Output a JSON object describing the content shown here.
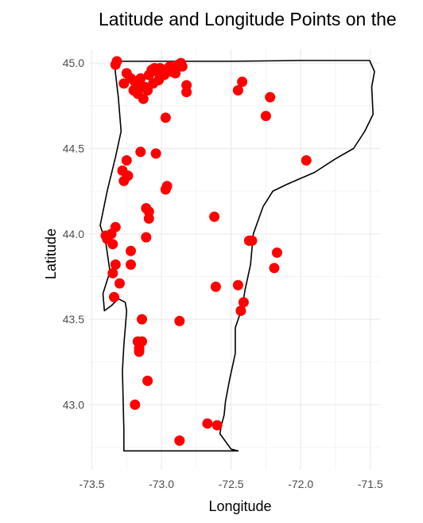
{
  "chart_data": {
    "type": "scatter",
    "title": "Latitude and Longitude Points on the",
    "xlabel": "Longitude",
    "ylabel": "Latitude",
    "xlim": [
      -73.52,
      -71.43
    ],
    "ylim": [
      42.62,
      45.08
    ],
    "xticks": [
      -73.5,
      -73.0,
      -72.5,
      -72.0,
      -71.5
    ],
    "xtick_labels": [
      "-73.5",
      "-73.0",
      "-72.5",
      "-72.0",
      "-71.5"
    ],
    "yticks": [
      43.0,
      43.5,
      44.0,
      44.5,
      45.0
    ],
    "ytick_labels": [
      "43.0",
      "43.5",
      "44.0",
      "44.5",
      "45.0"
    ],
    "grid": true,
    "point_color": "#ff0000",
    "outline_color": "#000000",
    "outline": {
      "x": [
        -73.34,
        -73.23,
        -73.0,
        -72.5,
        -72.0,
        -71.505,
        -71.47,
        -71.49,
        -71.48,
        -71.54,
        -71.62,
        -71.75,
        -71.9,
        -72.1,
        -72.2,
        -72.27,
        -72.34,
        -72.36,
        -72.4,
        -72.42,
        -72.47,
        -72.47,
        -72.51,
        -72.54,
        -72.55,
        -72.57,
        -72.58,
        -72.5,
        -72.45,
        -73.27,
        -73.27,
        -73.28,
        -73.27,
        -73.25,
        -73.26,
        -73.31,
        -73.36,
        -73.41,
        -73.42,
        -73.37,
        -73.4,
        -73.44,
        -73.39,
        -73.33,
        -73.29,
        -73.31,
        -73.34
      ],
      "y": [
        45.01,
        45.01,
        45.01,
        45.01,
        45.015,
        45.015,
        44.95,
        44.86,
        44.7,
        44.6,
        44.5,
        44.44,
        44.36,
        44.29,
        44.25,
        44.16,
        44.0,
        43.82,
        43.67,
        43.57,
        43.45,
        43.3,
        43.15,
        43.02,
        42.94,
        42.88,
        42.83,
        42.74,
        42.73,
        42.73,
        42.85,
        43.2,
        43.35,
        43.55,
        43.6,
        43.62,
        43.58,
        43.55,
        43.65,
        43.78,
        43.95,
        44.05,
        44.25,
        44.45,
        44.6,
        44.8,
        45.01
      ]
    },
    "x": [
      -73.32,
      -73.33,
      -73.27,
      -73.25,
      -73.22,
      -73.19,
      -73.16,
      -73.15,
      -73.12,
      -73.09,
      -73.07,
      -73.05,
      -73.03,
      -73.01,
      -72.99,
      -72.97,
      -72.95,
      -72.93,
      -72.9,
      -72.88,
      -72.86,
      -72.85,
      -73.2,
      -73.17,
      -73.13,
      -73.1,
      -73.06,
      -73.02,
      -72.98,
      -72.94,
      -72.9,
      -72.82,
      -72.82,
      -72.42,
      -72.45,
      -72.22,
      -72.25,
      -72.97,
      -73.15,
      -73.04,
      -73.25,
      -73.28,
      -73.27,
      -73.24,
      -73.11,
      -73.09,
      -72.96,
      -72.97,
      -71.96,
      -73.09,
      -73.36,
      -73.39,
      -73.33,
      -73.4,
      -73.35,
      -73.22,
      -73.11,
      -73.33,
      -73.35,
      -73.3,
      -73.22,
      -73.34,
      -72.35,
      -72.37,
      -72.17,
      -72.19,
      -72.62,
      -72.61,
      -72.45,
      -72.41,
      -72.43,
      -73.14,
      -72.87,
      -73.17,
      -73.16,
      -73.14,
      -73.16,
      -73.1,
      -73.19,
      -72.67,
      -72.6,
      -72.87
    ],
    "y": [
      45.01,
      44.99,
      44.88,
      44.94,
      44.91,
      44.89,
      44.87,
      44.91,
      44.86,
      44.93,
      44.96,
      44.97,
      44.95,
      44.97,
      44.96,
      44.95,
      44.97,
      44.95,
      44.96,
      44.99,
      45.0,
      44.98,
      44.84,
      44.82,
      44.79,
      44.84,
      44.88,
      44.9,
      44.93,
      44.98,
      44.94,
      44.87,
      44.83,
      44.89,
      44.84,
      44.8,
      44.69,
      44.68,
      44.48,
      44.47,
      44.43,
      44.37,
      44.31,
      44.34,
      44.15,
      44.13,
      44.28,
      44.26,
      44.43,
      44.09,
      44.0,
      43.97,
      44.04,
      43.99,
      43.94,
      43.9,
      43.98,
      43.82,
      43.77,
      43.71,
      43.82,
      43.63,
      43.96,
      43.96,
      43.89,
      43.8,
      44.1,
      43.69,
      43.7,
      43.6,
      43.55,
      43.5,
      43.49,
      43.37,
      43.33,
      43.37,
      43.31,
      43.14,
      43.0,
      42.89,
      42.88,
      42.79
    ]
  }
}
